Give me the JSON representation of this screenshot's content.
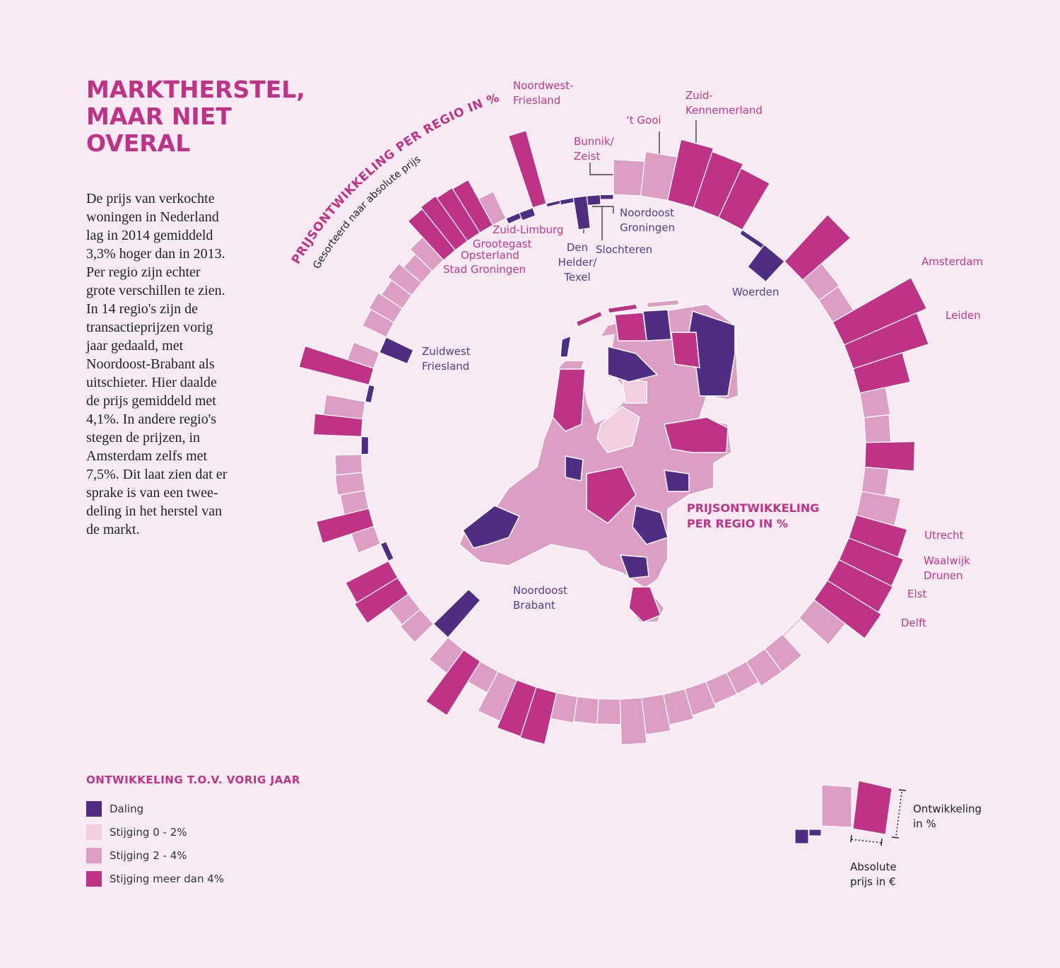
{
  "title": "MARKTHERSTEL,\nMAAR NIET\nOVERAL",
  "intro": "De prijs van verkochte\nwoningen in Nederland\nlag in 2014 gemiddeld\n3,3% hoger dan in 2013.\nPer regio zijn echter\ngrote verschillen te zien.\nIn 14 regio's zijn de\ntransactieprijzen vorig\njaar gedaald, met\nNoordoost-Brabant als\nuitschieter. Hier daalde\nde prijs gemiddeld met\n4,1%. In andere regio's\nstegen de prijzen, in\nAmsterdam zelfs met\n7,5%. Dit laat zien dat er\nsprake is van een twee-\ndeling in het herstel van\nde markt.",
  "chart_data": {
    "type": "radial-bar",
    "arc_title": "PRIJSONTWIKKELING PER REGIO IN %",
    "arc_subtitle": "Gesorteerd naar absolute prijs",
    "map_title": "PRIJSONTWIKKELING\nPER REGIO IN %",
    "categories": [
      "Bunnik/\nZeist",
      "‘t Gooi",
      "Zuid-\nKennemerland",
      null,
      null,
      null,
      "Woerden",
      null,
      null,
      null,
      "Amsterdam",
      "Leiden",
      null,
      null,
      null,
      null,
      null,
      null,
      "Utrecht",
      "Waalwijk\nDrunen",
      "Elst",
      "Delft",
      null,
      null,
      null,
      null,
      null,
      null,
      null,
      null,
      null,
      null,
      null,
      null,
      null,
      null,
      null,
      null,
      null,
      null,
      null,
      "Noordoost\nBrabant",
      null,
      null,
      null,
      null,
      null,
      null,
      null,
      null,
      null,
      null,
      null,
      null,
      null,
      null,
      null,
      null,
      "Zuidwest\nFriesland",
      null,
      null,
      null,
      null,
      null,
      null,
      null,
      null,
      null,
      null,
      null,
      "Zuid-Limburg",
      "Grootegast",
      "Noordwest-\nFriesland",
      "Opsterland",
      "Stad Groningen",
      "Den\nHelder/\nTexel",
      "Slochteren",
      "Noordoost\nGroningen"
    ],
    "values": [
      2.9,
      3.7,
      5.2,
      4.9,
      4.5,
      -0.4,
      -2.3,
      5.3,
      2.1,
      2.0,
      7.5,
      6.6,
      4.3,
      2.2,
      2.1,
      4.1,
      2.0,
      3.3,
      4.4,
      4.9,
      5.0,
      5.3,
      3.3,
      0.3,
      2.4,
      2.4,
      2.0,
      2.0,
      2.3,
      2.6,
      3.1,
      3.8,
      2.1,
      2.1,
      2.2,
      4.4,
      4.3,
      3.7,
      2.0,
      5.3,
      2.4,
      -4.1,
      2.2,
      2.0,
      4.2,
      4.0,
      -0.5,
      2.0,
      4.5,
      2.1,
      2.3,
      2.2,
      -0.6,
      4.0,
      3.3,
      -0.5,
      6.0,
      2.3,
      -2.5,
      2.2,
      2.4,
      2.1,
      2.5,
      2.0,
      2.6,
      4.4,
      4.6,
      4.4,
      4.3,
      2.5,
      -0.5,
      -0.7,
      6.3,
      -0.3,
      -0.4,
      -2.7,
      -0.8,
      -0.4
    ],
    "prices": [
      372000,
      369500,
      367000,
      364500,
      362000,
      359500,
      357000,
      354500,
      352000,
      349500,
      347000,
      344500,
      342000,
      339500,
      337000,
      334500,
      332000,
      329500,
      327000,
      324500,
      322000,
      319500,
      317000,
      314500,
      312000,
      309500,
      307000,
      304500,
      302000,
      299500,
      297000,
      294500,
      292000,
      289500,
      287000,
      284500,
      282000,
      279500,
      277000,
      274500,
      272000,
      269500,
      267000,
      264500,
      262000,
      259500,
      257000,
      254500,
      252000,
      249500,
      247000,
      244500,
      242000,
      239500,
      237000,
      234500,
      232000,
      229500,
      227000,
      224500,
      222000,
      219500,
      217000,
      214500,
      212000,
      209500,
      207000,
      204500,
      202000,
      199500,
      197000,
      194500,
      192000,
      189500,
      187000,
      184500,
      182000,
      179500
    ],
    "colors": [
      "#dc9ec2",
      "#dc9ec2",
      "#be3386",
      "#be3386",
      "#be3386",
      "#4f2d83",
      "#4f2d83",
      "#be3386",
      "#dc9ec2",
      "#dc9ec2",
      "#be3386",
      "#be3386",
      "#be3386",
      "#dc9ec2",
      "#dc9ec2",
      "#be3386",
      "#dc9ec2",
      "#dc9ec2",
      "#be3386",
      "#be3386",
      "#be3386",
      "#be3386",
      "#dc9ec2",
      "#f1cfe1",
      "#dc9ec2",
      "#dc9ec2",
      "#dc9ec2",
      "#dc9ec2",
      "#dc9ec2",
      "#dc9ec2",
      "#dc9ec2",
      "#dc9ec2",
      "#dc9ec2",
      "#dc9ec2",
      "#dc9ec2",
      "#be3386",
      "#be3386",
      "#dc9ec2",
      "#dc9ec2",
      "#be3386",
      "#dc9ec2",
      "#4f2d83",
      "#dc9ec2",
      "#dc9ec2",
      "#be3386",
      "#be3386",
      "#4f2d83",
      "#dc9ec2",
      "#be3386",
      "#dc9ec2",
      "#dc9ec2",
      "#dc9ec2",
      "#4f2d83",
      "#be3386",
      "#dc9ec2",
      "#4f2d83",
      "#be3386",
      "#dc9ec2",
      "#4f2d83",
      "#dc9ec2",
      "#dc9ec2",
      "#dc9ec2",
      "#dc9ec2",
      "#dc9ec2",
      "#dc9ec2",
      "#be3386",
      "#be3386",
      "#be3386",
      "#be3386",
      "#dc9ec2",
      "#4f2d83",
      "#4f2d83",
      "#be3386",
      "#4f2d83",
      "#4f2d83",
      "#4f2d83",
      "#4f2d83",
      "#4f2d83"
    ],
    "legend": {
      "title": "ONTWIKKELING T.O.V. VORIG JAAR",
      "items": [
        {
          "label": "Daling",
          "color": "#4f2d83"
        },
        {
          "label": "Stijging 0 - 2%",
          "color": "#f1cfe1"
        },
        {
          "label": "Stijging 2 - 4%",
          "color": "#dc9ec2"
        },
        {
          "label": "Stijging meer dan 4%",
          "color": "#be3386"
        }
      ]
    },
    "key": {
      "development": "Ontwikkeling\nin %",
      "price": "Absolute\nprijs in €"
    }
  }
}
